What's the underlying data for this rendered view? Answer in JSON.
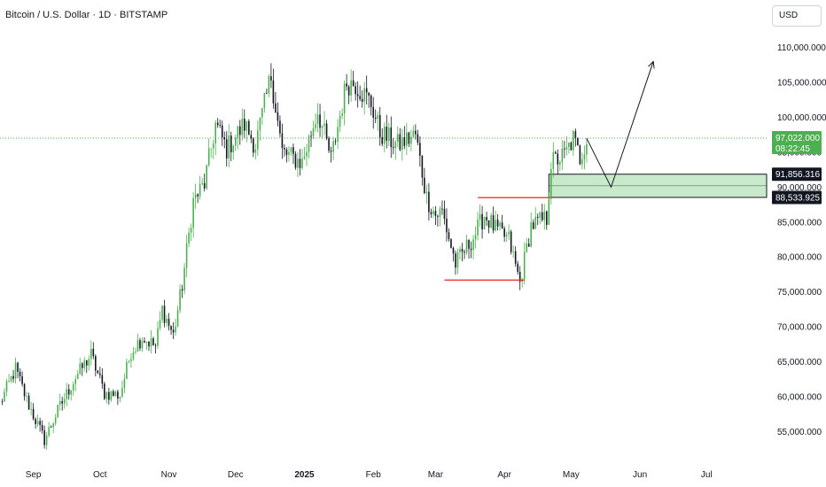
{
  "header": {
    "title": "Bitcoin / U.S. Dollar · 1D · BITSTAMP",
    "currency": "USD"
  },
  "colors": {
    "up": "#26a69a",
    "candle_up": "#4caf50",
    "candle_down": "#131722",
    "zone": "#b7e1b9",
    "range_line": "#e53935",
    "price_line": "#4caf50",
    "label_dark": "#131722"
  },
  "chart_data": {
    "type": "candlestick",
    "title": "Bitcoin / U.S. Dollar · 1D · BITSTAMP",
    "ylim": [
      51500,
      113000
    ],
    "y_ticks": [
      {
        "value": 55000,
        "label": "55,000.000"
      },
      {
        "value": 60000,
        "label": "60,000.000"
      },
      {
        "value": 65000,
        "label": "65,000.000"
      },
      {
        "value": 70000,
        "label": "70,000.000"
      },
      {
        "value": 75000,
        "label": "75,000.000"
      },
      {
        "value": 80000,
        "label": "80,000.000"
      },
      {
        "value": 85000,
        "label": "85,000.000"
      },
      {
        "value": 90000,
        "label": "90,000.000"
      },
      {
        "value": 95000,
        "label": "95,000.000"
      },
      {
        "value": 100000,
        "label": "100,000.000"
      },
      {
        "value": 105000,
        "label": "105,000.000"
      },
      {
        "value": 110000,
        "label": "110,000.000"
      }
    ],
    "x_ticks": [
      {
        "date": "2024-09-01",
        "label": "Sep",
        "bold": false
      },
      {
        "date": "2024-10-01",
        "label": "Oct",
        "bold": false
      },
      {
        "date": "2024-11-01",
        "label": "Nov",
        "bold": false
      },
      {
        "date": "2024-12-01",
        "label": "Dec",
        "bold": false
      },
      {
        "date": "2025-01-01",
        "label": "2025",
        "bold": true
      },
      {
        "date": "2025-02-01",
        "label": "Feb",
        "bold": false
      },
      {
        "date": "2025-03-01",
        "label": "Mar",
        "bold": false
      },
      {
        "date": "2025-04-01",
        "label": "Apr",
        "bold": false
      },
      {
        "date": "2025-05-01",
        "label": "May",
        "bold": false
      },
      {
        "date": "2025-06-01",
        "label": "Jun",
        "bold": false
      },
      {
        "date": "2025-07-01",
        "label": "Jul",
        "bold": false
      }
    ],
    "x_range": [
      "2024-08-17",
      "2025-07-28"
    ],
    "close_path": [
      [
        "2024-08-17",
        59000
      ],
      [
        "2024-08-24",
        64000
      ],
      [
        "2024-08-29",
        59500
      ],
      [
        "2024-09-06",
        53800
      ],
      [
        "2024-09-12",
        58000
      ],
      [
        "2024-09-20",
        62800
      ],
      [
        "2024-09-27",
        66000
      ],
      [
        "2024-10-03",
        60500
      ],
      [
        "2024-10-10",
        60200
      ],
      [
        "2024-10-15",
        66500
      ],
      [
        "2024-10-20",
        68500
      ],
      [
        "2024-10-26",
        67200
      ],
      [
        "2024-10-29",
        72500
      ],
      [
        "2024-11-03",
        68800
      ],
      [
        "2024-11-07",
        76000
      ],
      [
        "2024-11-12",
        88000
      ],
      [
        "2024-11-17",
        90500
      ],
      [
        "2024-11-22",
        99000
      ],
      [
        "2024-11-27",
        95500
      ],
      [
        "2024-12-05",
        99000
      ],
      [
        "2024-12-10",
        96000
      ],
      [
        "2024-12-17",
        106000
      ],
      [
        "2024-12-22",
        95000
      ],
      [
        "2024-12-31",
        93500
      ],
      [
        "2025-01-07",
        101000
      ],
      [
        "2025-01-13",
        94000
      ],
      [
        "2025-01-20",
        105000
      ],
      [
        "2025-01-24",
        104800
      ],
      [
        "2025-01-31",
        102000
      ],
      [
        "2025-02-04",
        97800
      ],
      [
        "2025-02-12",
        96000
      ],
      [
        "2025-02-20",
        97500
      ],
      [
        "2025-02-25",
        88500
      ],
      [
        "2025-03-01",
        86000
      ],
      [
        "2025-03-04",
        86500
      ],
      [
        "2025-03-10",
        79000
      ],
      [
        "2025-03-18",
        82800
      ],
      [
        "2025-03-23",
        86000
      ],
      [
        "2025-03-28",
        84000
      ],
      [
        "2025-04-03",
        82500
      ],
      [
        "2025-04-08",
        76300
      ],
      [
        "2025-04-13",
        84500
      ],
      [
        "2025-04-20",
        85500
      ],
      [
        "2025-04-22",
        93500
      ],
      [
        "2025-04-28",
        94500
      ],
      [
        "2025-05-02",
        96900
      ],
      [
        "2025-05-05",
        94200
      ],
      [
        "2025-05-08",
        97022
      ]
    ],
    "last_price": {
      "value": 97022,
      "label": "97,022.000",
      "countdown": "08:22:45"
    },
    "zone": {
      "from": "2025-04-21",
      "to": "2025-07-28",
      "top": 91856.316,
      "bottom": 88533.925,
      "top_label": "91,856.316",
      "bottom_label": "88,533.925",
      "mid": 90200
    },
    "range_lines": [
      {
        "from": "2025-03-20",
        "to": "2025-04-22",
        "value": 88500
      },
      {
        "from": "2025-03-05",
        "to": "2025-04-10",
        "value": 76700
      }
    ],
    "projection": [
      [
        "2025-05-08",
        97000
      ],
      [
        "2025-05-19",
        90000
      ],
      [
        "2025-06-07",
        108000
      ]
    ]
  }
}
